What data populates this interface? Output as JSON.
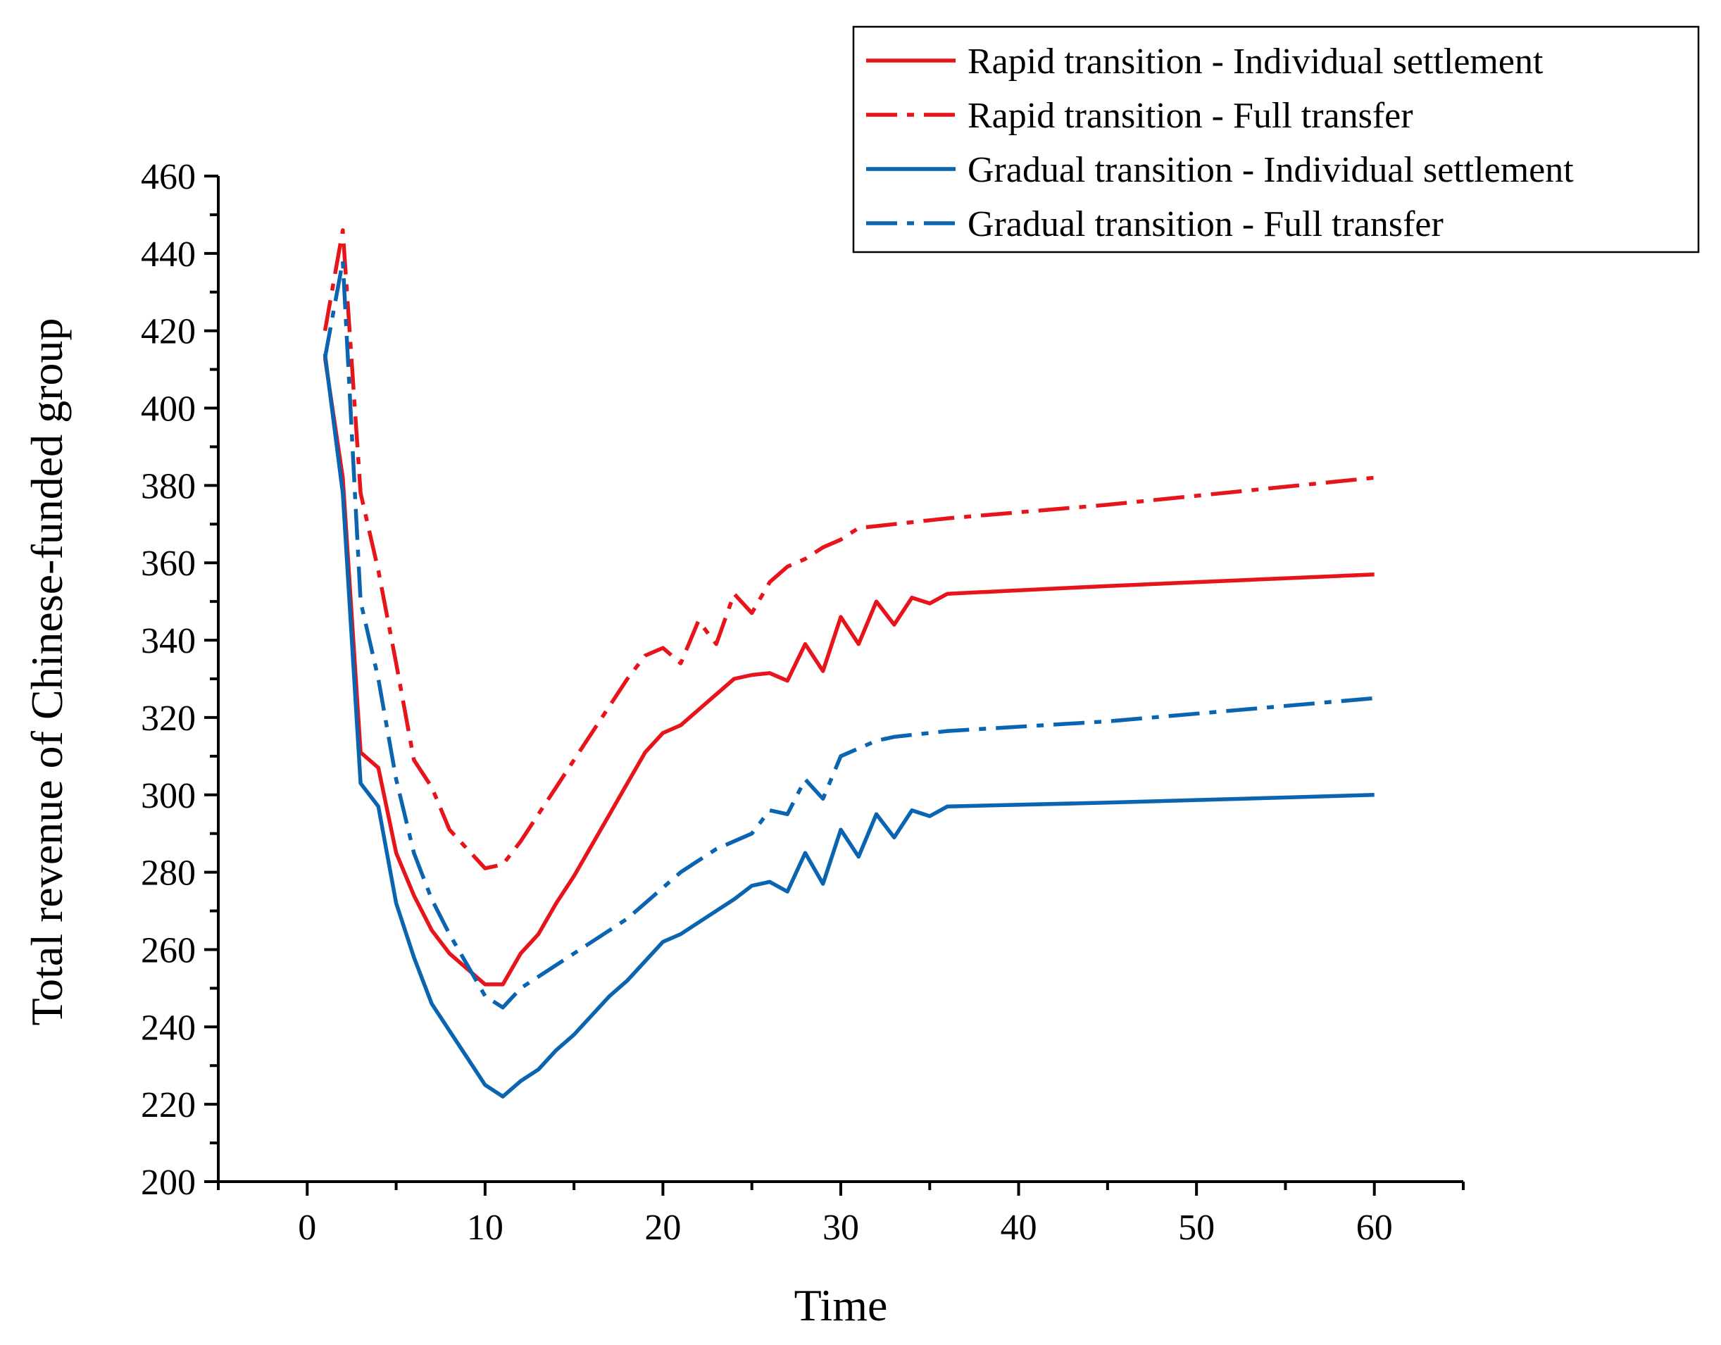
{
  "chart_data": {
    "type": "line",
    "title": "",
    "xlabel": "Time",
    "ylabel": "Total revenue of Chinese-funded group",
    "xlim": [
      -5,
      65
    ],
    "ylim": [
      200,
      460
    ],
    "xticks": [
      0,
      10,
      20,
      30,
      40,
      50,
      60
    ],
    "yticks": [
      200,
      220,
      240,
      260,
      280,
      300,
      320,
      340,
      360,
      380,
      400,
      420,
      440,
      460
    ],
    "x_minor_step": 5,
    "y_minor_step": 10,
    "grid": false,
    "legend_position": "top-right",
    "series": [
      {
        "name": "Rapid transition - Individual settlement",
        "color": "#e8141b",
        "dash": "solid",
        "x": [
          1,
          2,
          3,
          4,
          5,
          6,
          7,
          8,
          9,
          10,
          11,
          12,
          13,
          14,
          15,
          16,
          17,
          18,
          19,
          20,
          21,
          22,
          23,
          24,
          25,
          26,
          27,
          28,
          29,
          30,
          31,
          32,
          33,
          34,
          35,
          36,
          45,
          60
        ],
        "y": [
          413,
          382,
          311,
          307,
          285,
          274,
          265,
          259,
          255,
          251,
          251,
          259,
          264,
          272,
          279,
          287,
          295,
          303,
          311,
          316,
          318,
          322,
          326,
          330,
          331,
          331.5,
          329.5,
          339,
          332,
          346,
          339,
          350,
          344,
          351,
          349.5,
          352,
          354,
          357
        ]
      },
      {
        "name": "Rapid transition - Full transfer",
        "color": "#e8141b",
        "dash": "dashdot",
        "x": [
          1,
          2,
          3,
          4,
          5,
          6,
          7,
          8,
          9,
          10,
          11,
          12,
          13,
          14,
          15,
          16,
          17,
          18,
          19,
          20,
          21,
          22,
          23,
          24,
          25,
          26,
          27,
          28,
          29,
          30,
          31,
          32,
          33,
          34,
          35,
          36,
          45,
          60
        ],
        "y": [
          420,
          446,
          378,
          358,
          334,
          309,
          302,
          291,
          286,
          281,
          282,
          288,
          295,
          302,
          309,
          316,
          323,
          330,
          336,
          338,
          334,
          345,
          339,
          352,
          347,
          355,
          359,
          361,
          364,
          366,
          369,
          369.5,
          370,
          370.5,
          371,
          371.5,
          375,
          382
        ]
      },
      {
        "name": "Gradual transition - Individual settlement",
        "color": "#0a64b0",
        "dash": "solid",
        "x": [
          1,
          2,
          3,
          4,
          5,
          6,
          7,
          8,
          9,
          10,
          11,
          12,
          13,
          14,
          15,
          16,
          17,
          18,
          19,
          20,
          21,
          22,
          23,
          24,
          25,
          26,
          27,
          28,
          29,
          30,
          31,
          32,
          33,
          34,
          35,
          36,
          45,
          60
        ],
        "y": [
          414,
          378,
          303,
          297,
          272,
          258,
          246,
          239,
          232,
          225,
          222,
          226,
          229,
          234,
          238,
          243,
          248,
          252,
          257,
          262,
          264,
          267,
          270,
          273,
          276.5,
          277.5,
          275,
          285,
          277,
          291,
          284,
          295,
          289,
          296,
          294.5,
          297,
          298,
          300
        ]
      },
      {
        "name": "Gradual transition - Full transfer",
        "color": "#0a64b0",
        "dash": "dashdot",
        "x": [
          1,
          2,
          3,
          4,
          5,
          6,
          7,
          8,
          9,
          10,
          11,
          12,
          13,
          14,
          15,
          16,
          17,
          18,
          19,
          20,
          21,
          22,
          23,
          24,
          25,
          26,
          27,
          28,
          29,
          30,
          31,
          32,
          33,
          34,
          35,
          36,
          45,
          60
        ],
        "y": [
          413,
          438,
          350,
          330,
          304,
          285,
          273,
          264,
          256,
          248,
          245,
          250,
          253,
          256,
          259,
          262,
          265,
          268,
          272,
          276,
          280,
          283,
          286,
          288,
          290,
          296,
          295,
          304,
          299,
          310,
          312,
          314,
          315,
          315.5,
          316,
          316.5,
          319,
          325
        ]
      }
    ]
  }
}
